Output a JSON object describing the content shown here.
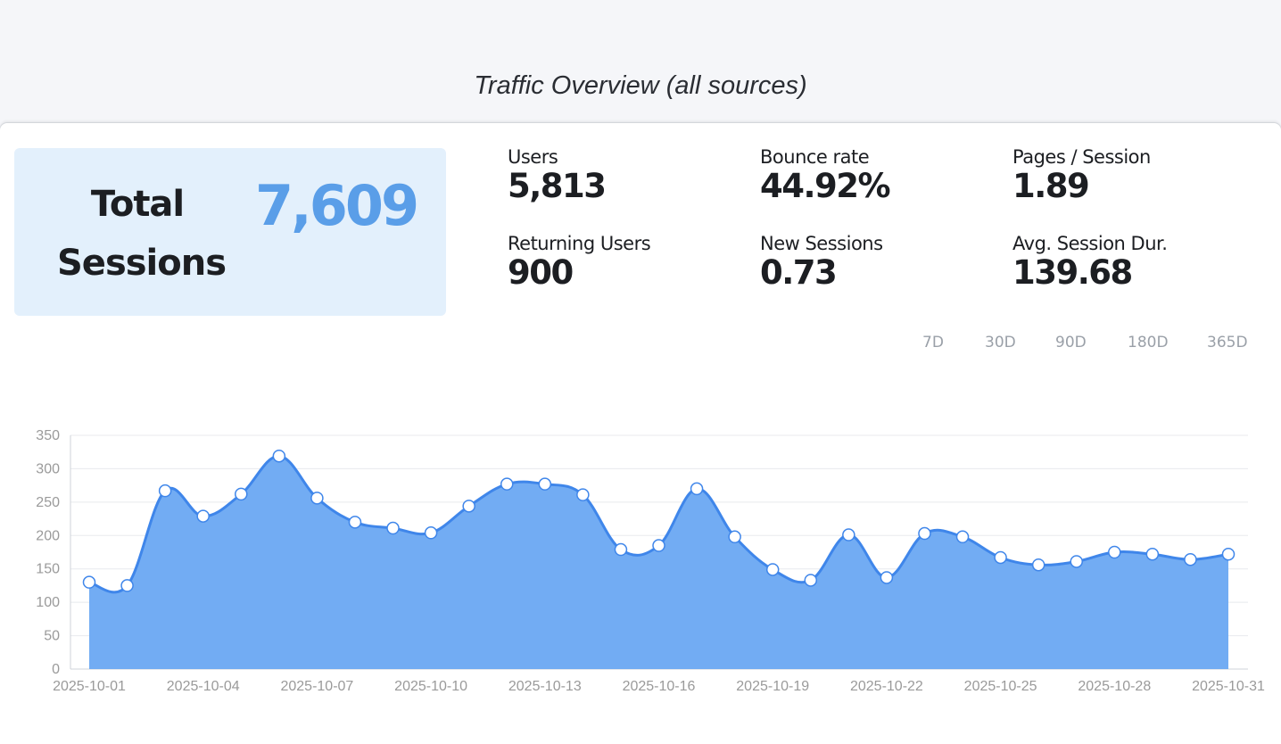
{
  "page_title": "Traffic Overview (all sources)",
  "hero": {
    "label": "Total Sessions",
    "value": "7,609"
  },
  "metrics": [
    {
      "label": "Users",
      "value": "5,813"
    },
    {
      "label": "Bounce rate",
      "value": "44.92%"
    },
    {
      "label": "Pages / Session",
      "value": "1.89"
    },
    {
      "label": "Returning Users",
      "value": "900"
    },
    {
      "label": "New Sessions",
      "value": "0.73"
    },
    {
      "label": "Avg. Session Dur.",
      "value": "139.68"
    }
  ],
  "range_tabs": [
    "7D",
    "30D",
    "90D",
    "180D",
    "365D"
  ],
  "colors": {
    "accent": "#5a9ee8",
    "area_fill": "#6aa8f2",
    "line": "#3f86ea",
    "hero_bg": "#e3f0fc"
  },
  "chart_data": {
    "type": "area",
    "x": [
      "2025-10-01",
      "2025-10-02",
      "2025-10-03",
      "2025-10-04",
      "2025-10-05",
      "2025-10-06",
      "2025-10-07",
      "2025-10-08",
      "2025-10-09",
      "2025-10-10",
      "2025-10-11",
      "2025-10-12",
      "2025-10-13",
      "2025-10-14",
      "2025-10-15",
      "2025-10-16",
      "2025-10-17",
      "2025-10-18",
      "2025-10-19",
      "2025-10-20",
      "2025-10-21",
      "2025-10-22",
      "2025-10-23",
      "2025-10-24",
      "2025-10-25",
      "2025-10-26",
      "2025-10-27",
      "2025-10-28",
      "2025-10-29",
      "2025-10-30",
      "2025-10-31"
    ],
    "x_tick_labels": [
      "2025-10-01",
      "2025-10-04",
      "2025-10-07",
      "2025-10-10",
      "2025-10-13",
      "2025-10-16",
      "2025-10-19",
      "2025-10-22",
      "2025-10-25",
      "2025-10-28",
      "2025-10-31"
    ],
    "series": [
      {
        "values": [
          130,
          125,
          267,
          229,
          262,
          319,
          256,
          220,
          211,
          204,
          244,
          277,
          277,
          261,
          179,
          185,
          270,
          198,
          149,
          133,
          201,
          137,
          203,
          198,
          167,
          156,
          161,
          175,
          172,
          164,
          172
        ]
      }
    ],
    "yticks": [
      0,
      50,
      100,
      150,
      200,
      250,
      300,
      350
    ],
    "ylim": [
      0,
      350
    ],
    "grid": true,
    "title": "",
    "xlabel": "",
    "ylabel": ""
  }
}
